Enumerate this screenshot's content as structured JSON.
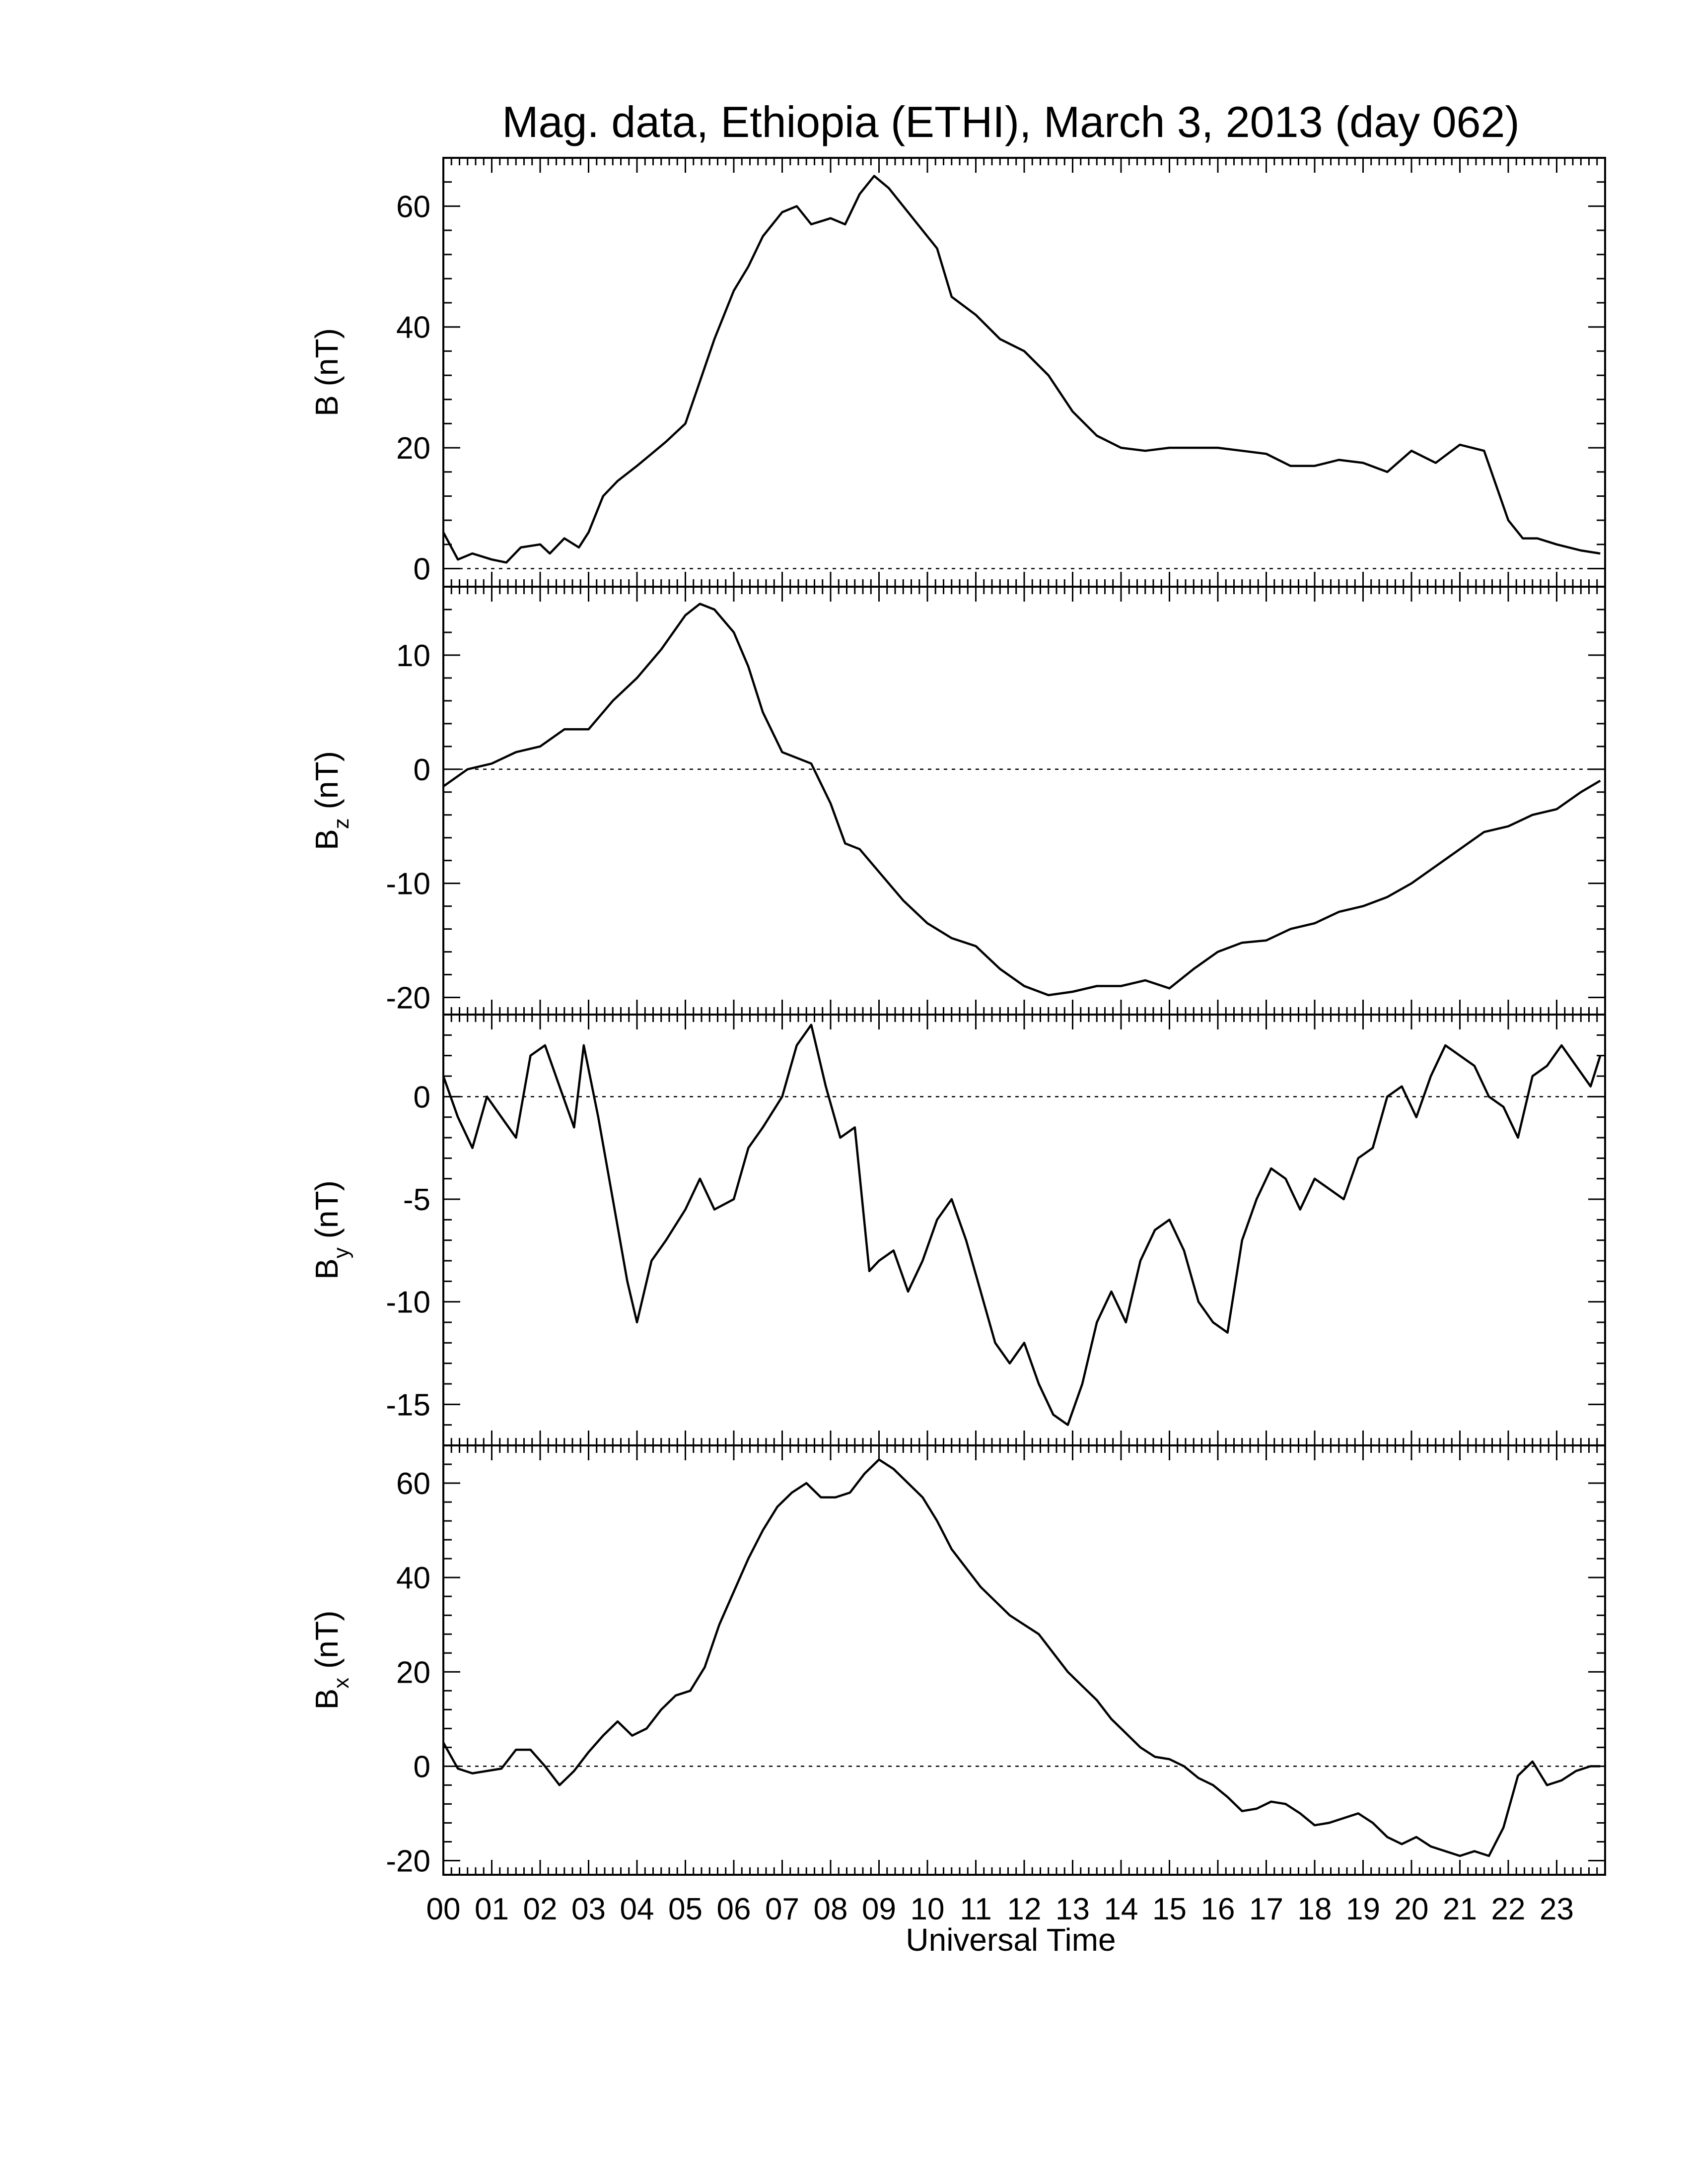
{
  "chart_data": {
    "title": "Mag. data, Ethiopia (ETHI), March 3, 2013 (day 062)",
    "xlabel": "Universal Time",
    "x_tick_labels": [
      "00",
      "01",
      "02",
      "03",
      "04",
      "05",
      "06",
      "07",
      "08",
      "09",
      "10",
      "11",
      "12",
      "13",
      "14",
      "15",
      "16",
      "17",
      "18",
      "19",
      "20",
      "21",
      "22",
      "23"
    ],
    "xlim": [
      0,
      24
    ],
    "grid": false,
    "panels": [
      {
        "id": "B",
        "type": "line",
        "ylabel_main": "B (nT)",
        "ylabel_sub": "",
        "ylim": [
          -3,
          68
        ],
        "yticks": [
          0,
          20,
          40,
          60
        ],
        "ytick_labels": [
          "0",
          "20",
          "40",
          "60"
        ],
        "zero_line": true,
        "x": [
          0,
          0.3,
          0.6,
          1.0,
          1.3,
          1.6,
          2.0,
          2.2,
          2.5,
          2.8,
          3.0,
          3.3,
          3.6,
          4.0,
          4.3,
          4.6,
          5.0,
          5.3,
          5.6,
          6.0,
          6.3,
          6.6,
          7.0,
          7.3,
          7.6,
          8.0,
          8.3,
          8.6,
          8.9,
          9.2,
          9.5,
          9.8,
          10.2,
          10.5,
          11.0,
          11.5,
          12.0,
          12.5,
          13.0,
          13.5,
          14.0,
          14.5,
          15.0,
          15.5,
          16.0,
          16.5,
          17.0,
          17.5,
          18.0,
          18.5,
          19.0,
          19.5,
          20.0,
          20.5,
          21.0,
          21.5,
          22.0,
          22.3,
          22.6,
          23.0,
          23.5,
          23.9
        ],
        "y": [
          6,
          1.5,
          2.5,
          1.5,
          1,
          3.5,
          4,
          2.5,
          5,
          3.5,
          6,
          12,
          14.5,
          17,
          19,
          21,
          24,
          31,
          38,
          46,
          50,
          55,
          59,
          60,
          57,
          58,
          57,
          62,
          65,
          63,
          60,
          57,
          53,
          45,
          42,
          38,
          36,
          32,
          26,
          22,
          20,
          19.5,
          20,
          20,
          20,
          19.5,
          19,
          17,
          17,
          18,
          17.5,
          16,
          19.5,
          17.5,
          20.5,
          19.5,
          8,
          5,
          5,
          4,
          3,
          2.5
        ]
      },
      {
        "id": "Bz",
        "type": "line",
        "ylabel_main": "B",
        "ylabel_sub": "z",
        "ylabel_unit": " (nT)",
        "ylim": [
          -21.5,
          16
        ],
        "yticks": [
          -20,
          -10,
          0,
          10
        ],
        "ytick_labels": [
          "-20",
          "-10",
          "0",
          "10"
        ],
        "zero_line": true,
        "x": [
          0,
          0.5,
          1.0,
          1.5,
          2.0,
          2.5,
          3.0,
          3.5,
          4.0,
          4.5,
          5.0,
          5.3,
          5.6,
          6.0,
          6.3,
          6.6,
          7.0,
          7.3,
          7.6,
          8.0,
          8.3,
          8.6,
          9.0,
          9.5,
          10.0,
          10.5,
          11.0,
          11.5,
          12.0,
          12.5,
          13.0,
          13.5,
          14.0,
          14.5,
          15.0,
          15.5,
          16.0,
          16.5,
          17.0,
          17.5,
          18.0,
          18.5,
          19.0,
          19.5,
          20.0,
          20.5,
          21.0,
          21.5,
          22.0,
          22.5,
          23.0,
          23.5,
          23.9
        ],
        "y": [
          -1.5,
          0,
          0.5,
          1.5,
          2,
          3.5,
          3.5,
          6,
          8,
          10.5,
          13.5,
          14.5,
          14,
          12,
          9,
          5,
          1.5,
          1,
          0.5,
          -3,
          -6.5,
          -7,
          -9,
          -11.5,
          -13.5,
          -14.8,
          -15.5,
          -17.5,
          -19,
          -19.8,
          -19.5,
          -19,
          -19,
          -18.5,
          -19.2,
          -17.5,
          -16,
          -15.2,
          -15,
          -14,
          -13.5,
          -12.5,
          -12,
          -11.2,
          -10,
          -8.5,
          -7,
          -5.5,
          -5,
          -4,
          -3.5,
          -2,
          -1
        ]
      },
      {
        "id": "By",
        "type": "line",
        "ylabel_main": "B",
        "ylabel_sub": "y",
        "ylabel_unit": " (nT)",
        "ylim": [
          -17,
          4
        ],
        "yticks": [
          -15,
          -10,
          -5,
          0
        ],
        "ytick_labels": [
          "-15",
          "-10",
          "-5",
          "0"
        ],
        "zero_line": true,
        "x": [
          0,
          0.3,
          0.6,
          0.9,
          1.2,
          1.5,
          1.8,
          2.1,
          2.4,
          2.7,
          2.9,
          3.2,
          3.5,
          3.8,
          4.0,
          4.3,
          4.6,
          5.0,
          5.3,
          5.6,
          6.0,
          6.3,
          6.6,
          7.0,
          7.3,
          7.6,
          7.9,
          8.2,
          8.5,
          8.8,
          9.0,
          9.3,
          9.6,
          9.9,
          10.2,
          10.5,
          10.8,
          11.1,
          11.4,
          11.7,
          12.0,
          12.3,
          12.6,
          12.9,
          13.2,
          13.5,
          13.8,
          14.1,
          14.4,
          14.7,
          15.0,
          15.3,
          15.6,
          15.9,
          16.2,
          16.5,
          16.8,
          17.1,
          17.4,
          17.7,
          18.0,
          18.3,
          18.6,
          18.9,
          19.2,
          19.5,
          19.8,
          20.1,
          20.4,
          20.7,
          21.0,
          21.3,
          21.6,
          21.9,
          22.2,
          22.5,
          22.8,
          23.1,
          23.4,
          23.7,
          23.9
        ],
        "y": [
          1,
          -1,
          -2.5,
          0,
          -1,
          -2,
          2,
          2.5,
          0.5,
          -1.5,
          2.5,
          -1,
          -5,
          -9,
          -11,
          -8,
          -7,
          -5.5,
          -4,
          -5.5,
          -5,
          -2.5,
          -1.5,
          0,
          2.5,
          3.5,
          0.5,
          -2,
          -1.5,
          -8.5,
          -8,
          -7.5,
          -9.5,
          -8,
          -6,
          -5,
          -7,
          -9.5,
          -12,
          -13,
          -12,
          -14,
          -15.5,
          -16,
          -14,
          -11,
          -9.5,
          -11,
          -8,
          -6.5,
          -6,
          -7.5,
          -10,
          -11,
          -11.5,
          -7,
          -5,
          -3.5,
          -4,
          -5.5,
          -4,
          -4.5,
          -5,
          -3,
          -2.5,
          0,
          0.5,
          -1,
          1,
          2.5,
          2,
          1.5,
          0,
          -0.5,
          -2,
          1,
          1.5,
          2.5,
          1.5,
          0.5,
          2
        ]
      },
      {
        "id": "Bx",
        "type": "line",
        "ylabel_main": "B",
        "ylabel_sub": "x",
        "ylabel_unit": " (nT)",
        "ylim": [
          -23,
          68
        ],
        "yticks": [
          -20,
          0,
          20,
          40,
          60
        ],
        "ytick_labels": [
          "-20",
          "0",
          "20",
          "40",
          "60"
        ],
        "zero_line": true,
        "x": [
          0,
          0.3,
          0.6,
          0.9,
          1.2,
          1.5,
          1.8,
          2.1,
          2.4,
          2.7,
          3.0,
          3.3,
          3.6,
          3.9,
          4.2,
          4.5,
          4.8,
          5.1,
          5.4,
          5.7,
          6.0,
          6.3,
          6.6,
          6.9,
          7.2,
          7.5,
          7.8,
          8.1,
          8.4,
          8.7,
          9.0,
          9.3,
          9.6,
          9.9,
          10.2,
          10.5,
          10.8,
          11.1,
          11.4,
          11.7,
          12.0,
          12.3,
          12.6,
          12.9,
          13.2,
          13.5,
          13.8,
          14.1,
          14.4,
          14.7,
          15.0,
          15.3,
          15.6,
          15.9,
          16.2,
          16.5,
          16.8,
          17.1,
          17.4,
          17.7,
          18.0,
          18.3,
          18.6,
          18.9,
          19.2,
          19.5,
          19.8,
          20.1,
          20.4,
          20.7,
          21.0,
          21.3,
          21.6,
          21.9,
          22.2,
          22.5,
          22.8,
          23.1,
          23.4,
          23.7,
          23.9
        ],
        "y": [
          5,
          -0.5,
          -1.5,
          -1,
          -0.5,
          3.5,
          3.5,
          0,
          -4,
          -1,
          3,
          6.5,
          9.5,
          6.5,
          8,
          12,
          15,
          16,
          21,
          30,
          37,
          44,
          50,
          55,
          58,
          60,
          57,
          57,
          58,
          62,
          65,
          63,
          60,
          57,
          52,
          46,
          42,
          38,
          35,
          32,
          30,
          28,
          24,
          20,
          17,
          14,
          10,
          7,
          4,
          2,
          1.5,
          0,
          -2.5,
          -4,
          -6.5,
          -9.5,
          -9,
          -7.5,
          -8,
          -10,
          -12.5,
          -12,
          -11,
          -10,
          -12,
          -15,
          -16.5,
          -15,
          -17,
          -18,
          -19,
          -18,
          -19,
          -13,
          -2,
          1,
          -4,
          -3,
          -1,
          0,
          0
        ]
      }
    ]
  }
}
